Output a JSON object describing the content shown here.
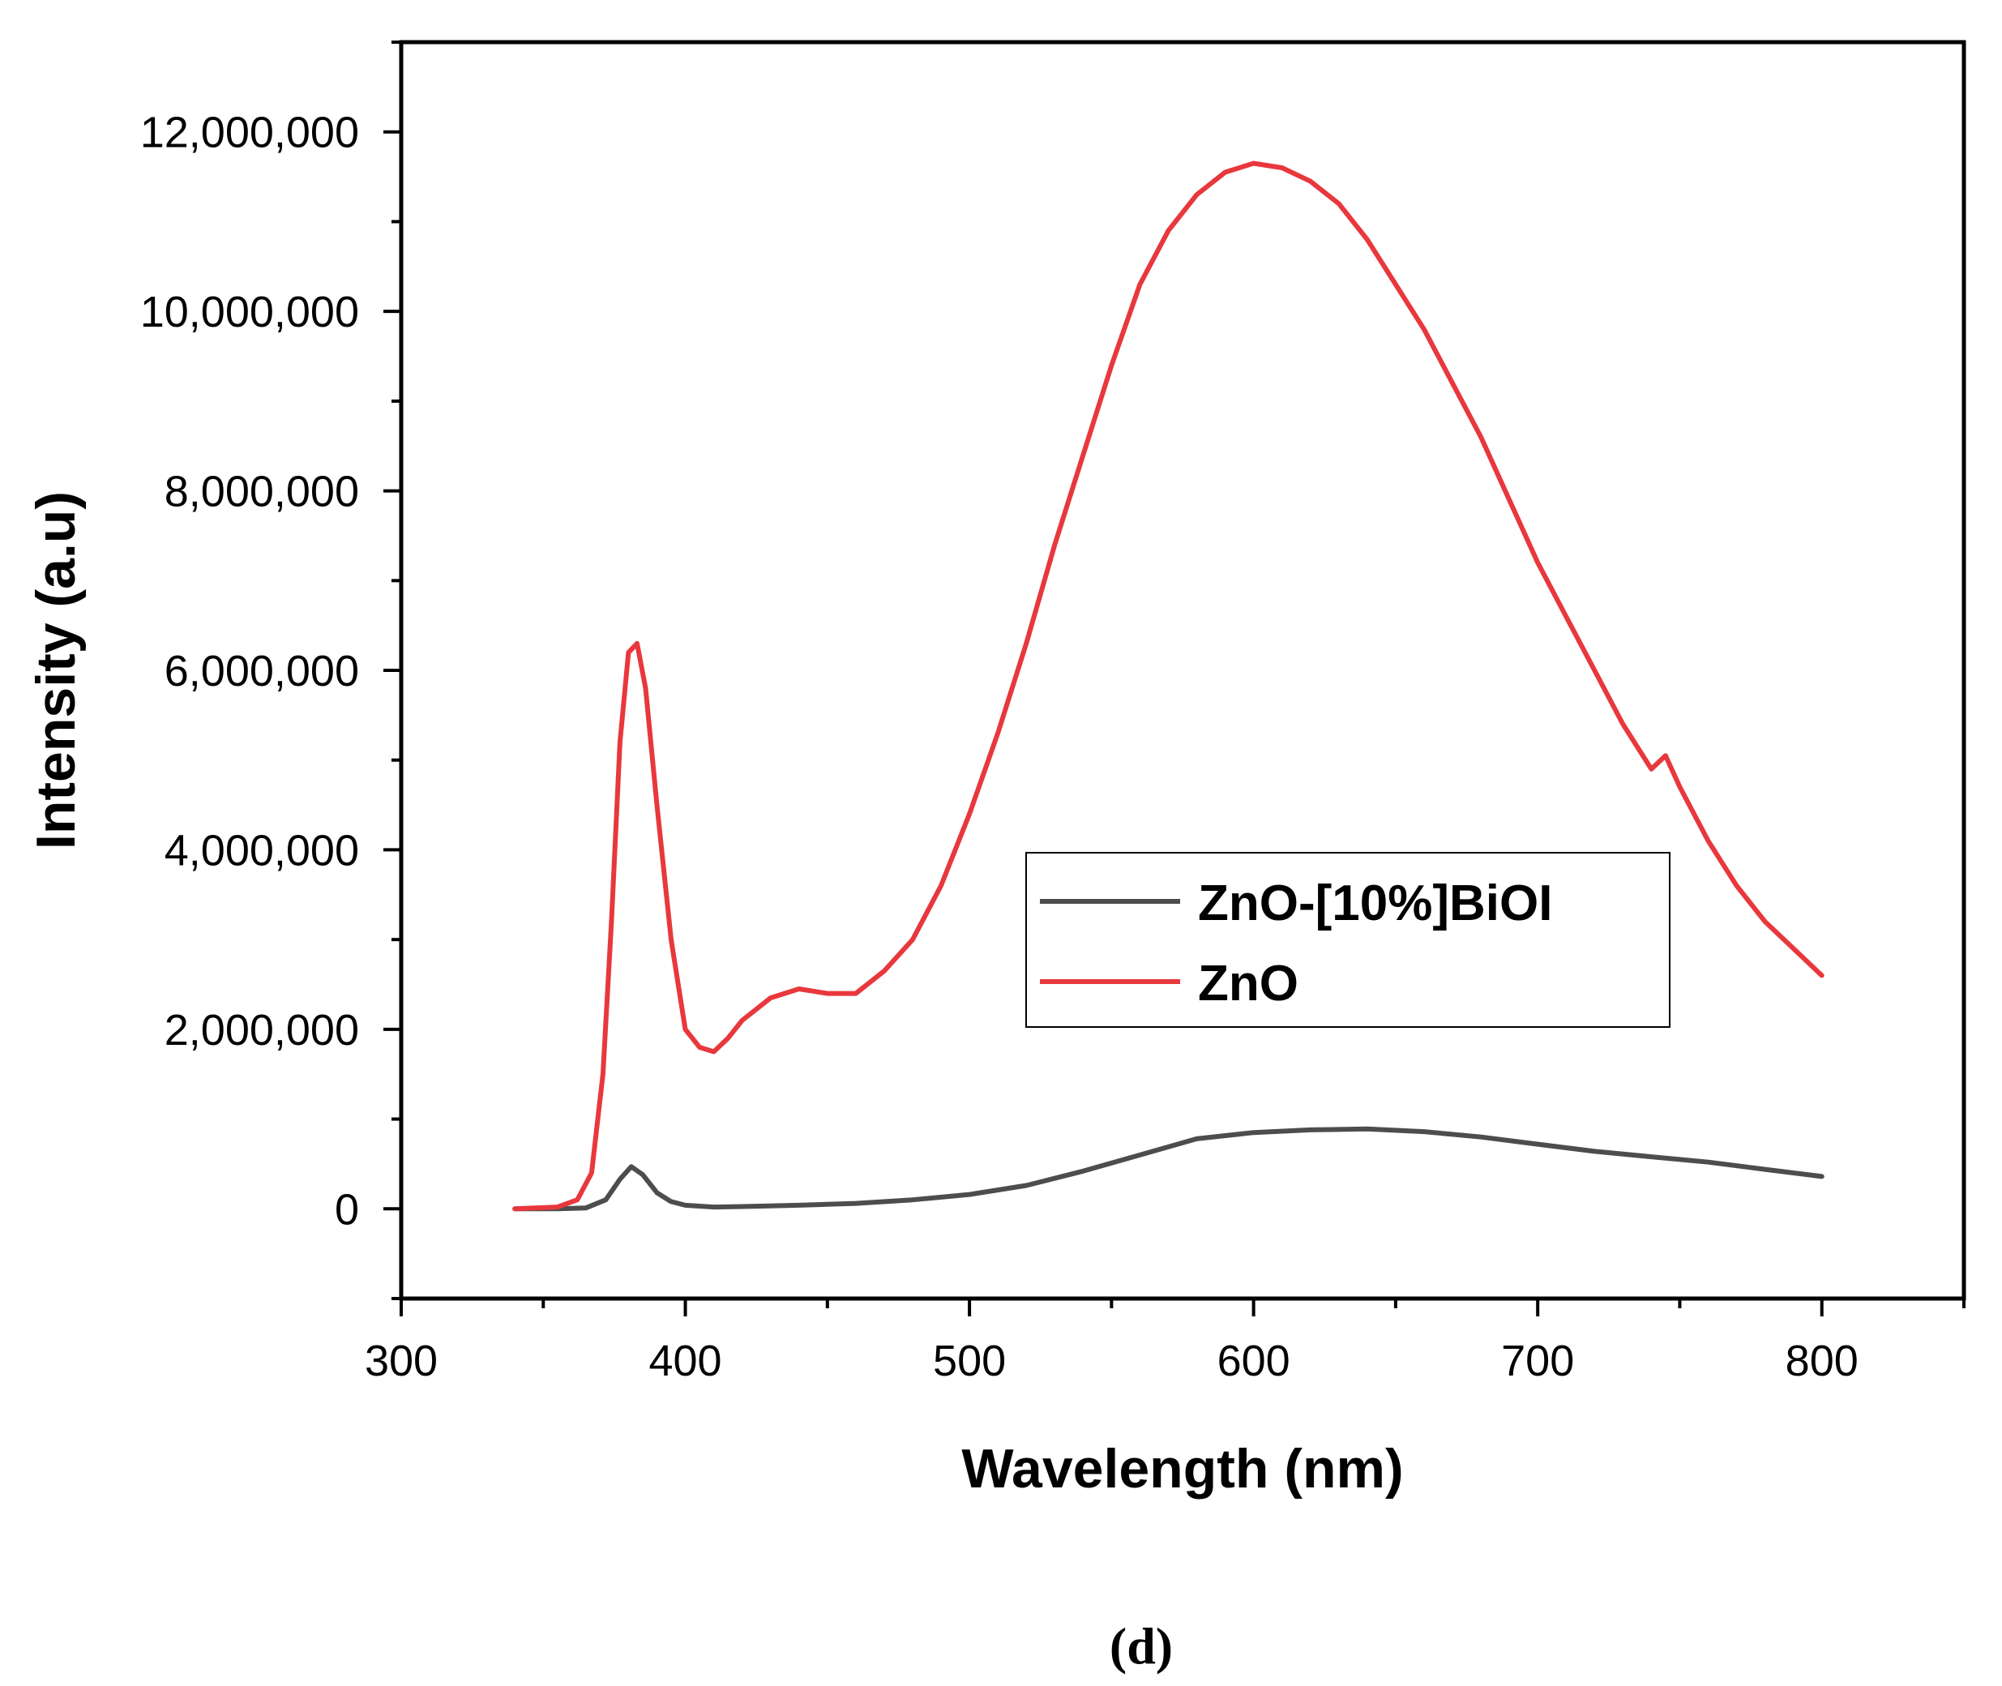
{
  "chart_data": {
    "type": "line",
    "title": "",
    "xlabel": "Wavelength (nm)",
    "ylabel": "Intensity (a.u)",
    "xlim": [
      300,
      850
    ],
    "ylim": [
      -1000000,
      13000000
    ],
    "x_ticks": [
      300,
      400,
      500,
      600,
      700,
      800
    ],
    "x_tick_labels": [
      "300",
      "400",
      "500",
      "600",
      "700",
      "800"
    ],
    "y_ticks": [
      0,
      2000000,
      4000000,
      6000000,
      8000000,
      10000000,
      12000000
    ],
    "y_tick_labels": [
      "0",
      "2,000,000",
      "4,000,000",
      "6,000,000",
      "8,000,000",
      "10,000,000",
      "12,000,000"
    ],
    "grid": false,
    "legend_position": "center-right",
    "panel_label": "(d)",
    "series": [
      {
        "name": "ZnO-[10%]BiOI",
        "color": "#4d4d4d",
        "x": [
          340,
          355,
          365,
          372,
          377,
          381,
          385,
          390,
          395,
          400,
          410,
          420,
          440,
          460,
          480,
          500,
          520,
          540,
          560,
          580,
          600,
          620,
          640,
          660,
          680,
          700,
          720,
          740,
          760,
          780,
          800
        ],
        "y": [
          0,
          0,
          10000,
          100000,
          330000,
          470000,
          380000,
          180000,
          80000,
          40000,
          20000,
          25000,
          40000,
          60000,
          100000,
          160000,
          260000,
          420000,
          600000,
          780000,
          850000,
          880000,
          890000,
          860000,
          800000,
          720000,
          640000,
          580000,
          520000,
          440000,
          360000
        ]
      },
      {
        "name": "ZnO",
        "color": "#e8383d",
        "x": [
          340,
          355,
          362,
          367,
          371,
          374,
          377,
          380,
          383,
          386,
          390,
          395,
          400,
          405,
          410,
          415,
          420,
          430,
          440,
          450,
          460,
          470,
          480,
          490,
          500,
          510,
          520,
          530,
          540,
          550,
          560,
          570,
          580,
          590,
          600,
          610,
          620,
          630,
          640,
          650,
          660,
          670,
          680,
          690,
          700,
          710,
          720,
          730,
          740,
          745,
          750,
          760,
          770,
          780,
          790,
          800
        ],
        "y": [
          0,
          20000,
          100000,
          400000,
          1500000,
          3200000,
          5200000,
          6200000,
          6300000,
          5800000,
          4500000,
          3000000,
          2000000,
          1800000,
          1750000,
          1900000,
          2100000,
          2350000,
          2450000,
          2400000,
          2400000,
          2650000,
          3000000,
          3600000,
          4400000,
          5300000,
          6300000,
          7400000,
          8400000,
          9400000,
          10300000,
          10900000,
          11300000,
          11550000,
          11650000,
          11600000,
          11450000,
          11200000,
          10800000,
          10300000,
          9800000,
          9200000,
          8600000,
          7900000,
          7200000,
          6600000,
          6000000,
          5400000,
          4900000,
          5050000,
          4700000,
          4100000,
          3600000,
          3200000,
          2900000,
          2600000
        ]
      }
    ]
  }
}
